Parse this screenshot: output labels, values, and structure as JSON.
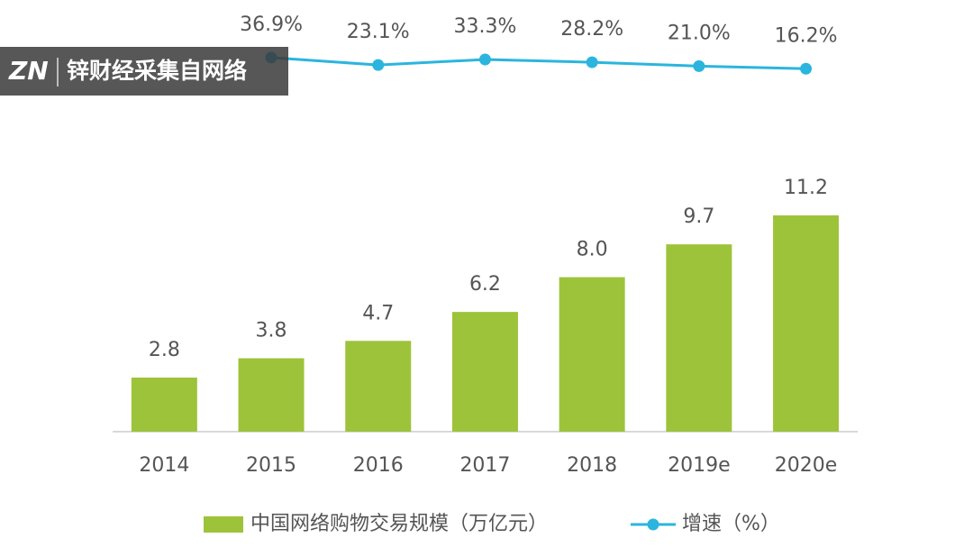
{
  "chart_data": {
    "type": "bar",
    "categories": [
      "2014",
      "2015",
      "2016",
      "2017",
      "2018",
      "2019e",
      "2020e"
    ],
    "series": [
      {
        "name": "中国网络购物交易规模（万亿元）",
        "color": "#9dc33b",
        "values": [
          2.8,
          3.8,
          4.7,
          6.2,
          8.0,
          9.7,
          11.2
        ],
        "value_labels": [
          "2.8",
          "3.8",
          "4.7",
          "6.2",
          "8.0",
          "9.7",
          "11.2"
        ]
      },
      {
        "name": "增速（%）",
        "type": "line",
        "axis": "y2",
        "color": "#2bb5de",
        "values": [
          null,
          36.9,
          23.1,
          33.3,
          28.2,
          21.0,
          16.2
        ],
        "value_labels": [
          null,
          "36.9%",
          "23.1%",
          "33.3%",
          "28.2%",
          "21.0%",
          "16.2%"
        ]
      }
    ],
    "ylim": [
      0,
      14
    ],
    "y2lim": [
      0,
      100
    ],
    "legend": "bottom"
  },
  "watermark": {
    "logo": "ZN",
    "text": "锌财经采集自网络"
  }
}
